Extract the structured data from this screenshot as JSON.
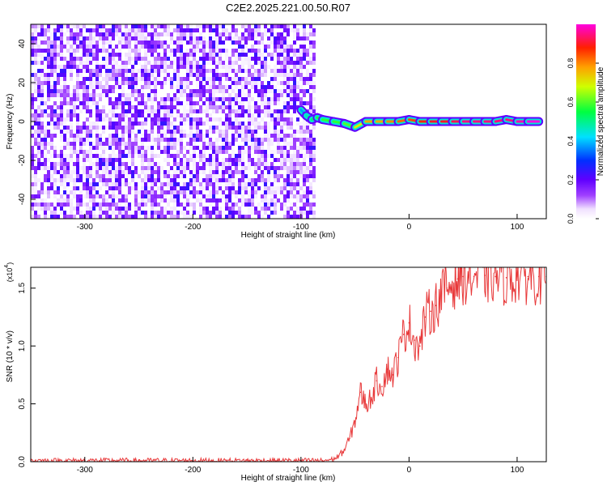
{
  "title": "C2E2.2025.221.00.50.R07",
  "chart_data": [
    {
      "type": "heatmap",
      "xlabel": "Height of straight line (km)",
      "ylabel": "Frequency (Hz)",
      "xlim": [
        -350,
        127
      ],
      "ylim": [
        -50,
        50
      ],
      "xticks": [
        -300,
        -200,
        -100,
        0,
        100
      ],
      "yticks": [
        -40,
        -20,
        0,
        20,
        40
      ],
      "colorbar": {
        "label": "Normalized spectral amplitude",
        "range": [
          0,
          1
        ],
        "ticks": [
          "0.0",
          "0.2",
          "0.4",
          "0.6",
          "0.8"
        ],
        "tick_values": [
          0.0,
          0.2,
          0.4,
          0.6,
          0.8
        ],
        "colormap": "rainbow (white-purple-blue-cyan-green-yellow-orange-red-magenta)"
      },
      "noise_region": {
        "x": [
          -350,
          -88
        ],
        "y": [
          -50,
          50
        ],
        "amplitude": [
          0.0,
          0.25
        ]
      },
      "signal_ridge": [
        {
          "x": -100,
          "freq": 6,
          "amplitude": 0.3
        },
        {
          "x": -95,
          "freq": 3,
          "amplitude": 0.45
        },
        {
          "x": -90,
          "freq": 1,
          "amplitude": 0.5
        },
        {
          "x": -85,
          "freq": 2,
          "amplitude": 0.55
        },
        {
          "x": -80,
          "freq": 1,
          "amplitude": 0.6
        },
        {
          "x": -70,
          "freq": 0,
          "amplitude": 0.55
        },
        {
          "x": -60,
          "freq": -1,
          "amplitude": 0.6
        },
        {
          "x": -50,
          "freq": -3,
          "amplitude": 0.6
        },
        {
          "x": -40,
          "freq": 0,
          "amplitude": 0.8
        },
        {
          "x": -30,
          "freq": 0,
          "amplitude": 0.75
        },
        {
          "x": -20,
          "freq": 0,
          "amplitude": 0.8
        },
        {
          "x": -10,
          "freq": 0,
          "amplitude": 0.8
        },
        {
          "x": 0,
          "freq": 1,
          "amplitude": 0.85
        },
        {
          "x": 10,
          "freq": 0,
          "amplitude": 0.85
        },
        {
          "x": 20,
          "freq": 0,
          "amplitude": 0.9
        },
        {
          "x": 30,
          "freq": 0,
          "amplitude": 0.9
        },
        {
          "x": 40,
          "freq": 0,
          "amplitude": 0.9
        },
        {
          "x": 50,
          "freq": 0,
          "amplitude": 0.95
        },
        {
          "x": 60,
          "freq": 0,
          "amplitude": 0.95
        },
        {
          "x": 70,
          "freq": 0,
          "amplitude": 0.95
        },
        {
          "x": 80,
          "freq": 0,
          "amplitude": 0.95
        },
        {
          "x": 90,
          "freq": 1,
          "amplitude": 0.95
        },
        {
          "x": 100,
          "freq": 0,
          "amplitude": 0.95
        },
        {
          "x": 110,
          "freq": 0,
          "amplitude": 1.0
        },
        {
          "x": 120,
          "freq": 0,
          "amplitude": 1.0
        }
      ]
    },
    {
      "type": "line",
      "xlabel": "Height of straight line (km)",
      "ylabel": "SNR (10 * v/v)",
      "yscale_label": "(x10^4)",
      "xlim": [
        -350,
        127
      ],
      "ylim": [
        0,
        1.68
      ],
      "xticks": [
        -300,
        -200,
        -100,
        0,
        100
      ],
      "yticks": [
        0.0,
        0.5,
        1.0,
        1.5
      ],
      "ytick_labels": [
        "0.0",
        "0.5",
        "1.0",
        "1.5"
      ],
      "series": [
        {
          "color": "#e8393a",
          "x": [
            -350,
            -300,
            -250,
            -200,
            -150,
            -100,
            -80,
            -70,
            -65,
            -60,
            -55,
            -50,
            -45,
            -40,
            -35,
            -30,
            -25,
            -20,
            -15,
            -10,
            -5,
            0,
            5,
            10,
            15,
            20,
            25,
            30,
            35,
            40,
            45,
            50,
            60,
            70,
            80,
            90,
            100,
            110,
            120,
            127
          ],
          "y": [
            0.01,
            0.01,
            0.01,
            0.01,
            0.01,
            0.01,
            0.01,
            0.02,
            0.05,
            0.1,
            0.2,
            0.35,
            0.6,
            0.5,
            0.55,
            0.7,
            0.65,
            0.8,
            0.75,
            0.9,
            1.1,
            1.2,
            1.05,
            1.0,
            1.25,
            1.3,
            1.35,
            1.45,
            1.5,
            1.55,
            1.58,
            1.6,
            1.6,
            1.61,
            1.6,
            1.59,
            1.6,
            1.6,
            1.6,
            1.6
          ]
        }
      ]
    }
  ]
}
